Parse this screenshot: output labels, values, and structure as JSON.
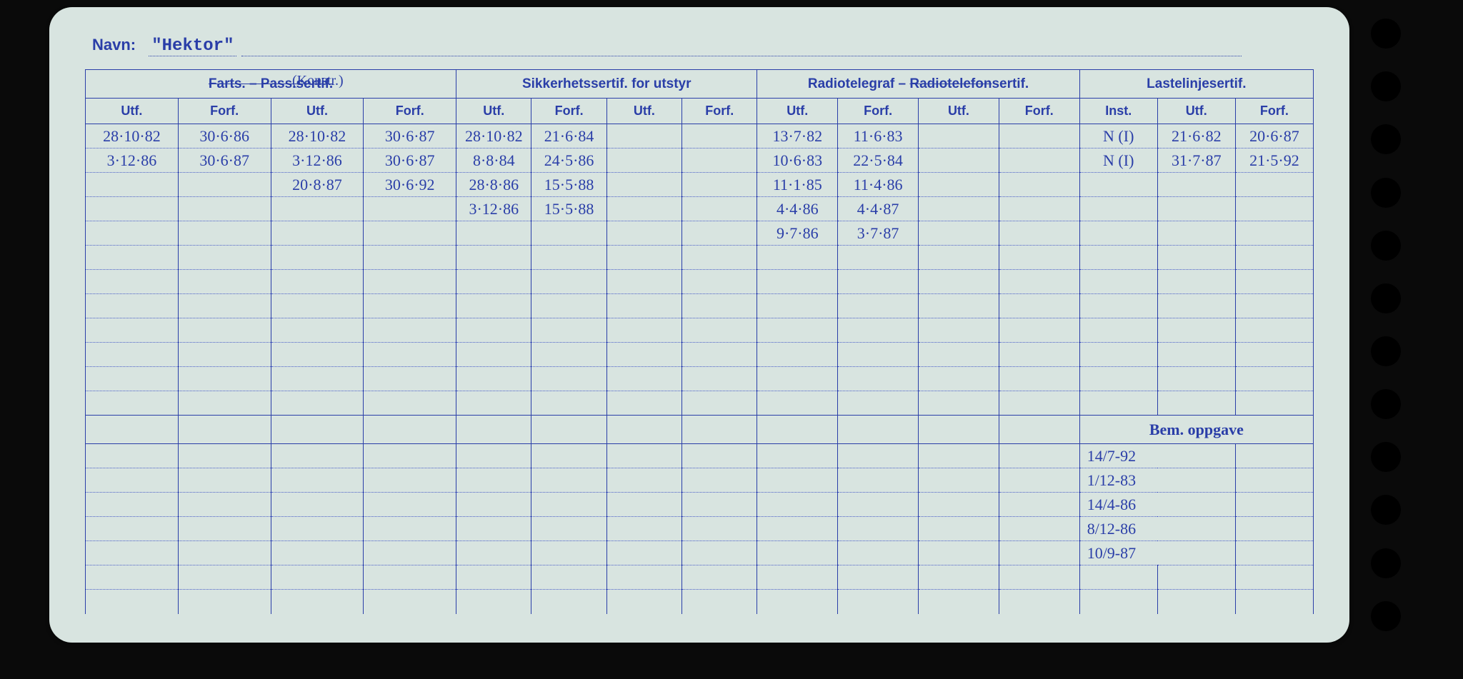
{
  "colors": {
    "card_bg": "#d8e4e0",
    "ink": "#2a3ea8",
    "page_bg": "#0a0a0a"
  },
  "navn": {
    "label": "Navn:",
    "value": "\"Hektor\""
  },
  "groups": {
    "farts": {
      "title": "Farts. – Pass.sertif.",
      "handnote": "(Konstr.)"
    },
    "sikkerhet": {
      "title": "Sikkerhetssertif. for utstyr"
    },
    "radio": {
      "title": "Radiotelegraf – Radiotelefonsertif."
    },
    "laste": {
      "title": "Lastelinjesertif."
    }
  },
  "subheaders": {
    "utf": "Utf.",
    "forf": "Forf.",
    "inst": "Inst."
  },
  "bem_label": "Bem. oppgave",
  "farts1": [
    {
      "utf": "28·10·82",
      "forf": "30·6·86"
    },
    {
      "utf": "3·12·86",
      "forf": "30·6·87"
    }
  ],
  "farts2": [
    {
      "utf": "28·10·82",
      "forf": "30·6·87"
    },
    {
      "utf": "3·12·86",
      "forf": "30·6·87"
    },
    {
      "utf": "20·8·87",
      "forf": "30·6·92"
    }
  ],
  "sikk1": [
    {
      "utf": "28·10·82",
      "forf": "21·6·84"
    },
    {
      "utf": "8·8·84",
      "forf": "24·5·86"
    },
    {
      "utf": "28·8·86",
      "forf": "15·5·88"
    },
    {
      "utf": "3·12·86",
      "forf": "15·5·88"
    }
  ],
  "radio1": [
    {
      "utf": "13·7·82",
      "forf": "11·6·83"
    },
    {
      "utf": "10·6·83",
      "forf": "22·5·84"
    },
    {
      "utf": "11·1·85",
      "forf": "11·4·86"
    },
    {
      "utf": "4·4·86",
      "forf": "4·4·87"
    },
    {
      "utf": "9·7·86",
      "forf": "3·7·87"
    }
  ],
  "laste": [
    {
      "inst": "N (I)",
      "utf": "21·6·82",
      "forf": "20·6·87"
    },
    {
      "inst": "N (I)",
      "utf": "31·7·87",
      "forf": "21·5·92"
    }
  ],
  "bem": [
    "14/7-92",
    "1/12-83",
    "14/4-86",
    "8/12-86",
    "10/9-87"
  ]
}
